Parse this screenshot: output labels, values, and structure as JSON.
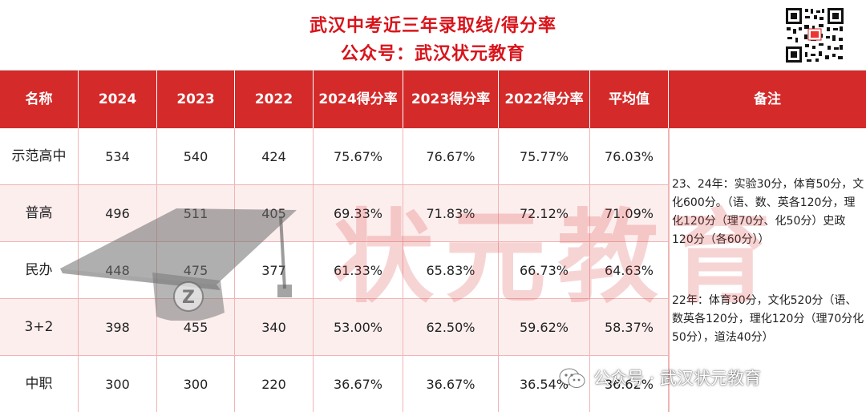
{
  "title": {
    "line1": "武汉中考近三年录取线/得分率",
    "line2": "公众号：武汉状元教育"
  },
  "table": {
    "headers": [
      "名称",
      "2024",
      "2023",
      "2022",
      "2024得分率",
      "2023得分率",
      "2022得分率",
      "平均值",
      "备注"
    ],
    "rows": [
      [
        "示范高中",
        "534",
        "540",
        "424",
        "75.67%",
        "76.67%",
        "75.77%",
        "76.03%"
      ],
      [
        "普高",
        "496",
        "511",
        "405",
        "69.33%",
        "71.83%",
        "72.12%",
        "71.09%"
      ],
      [
        "民办",
        "448",
        "475",
        "377",
        "61.33%",
        "65.83%",
        "66.73%",
        "64.63%"
      ],
      [
        "3+2",
        "398",
        "455",
        "340",
        "53.00%",
        "62.50%",
        "59.62%",
        "58.37%"
      ],
      [
        "中职",
        "300",
        "300",
        "220",
        "36.67%",
        "36.67%",
        "36.54%",
        "36.62%"
      ]
    ],
    "notes": {
      "note_2324": "23、24年：实验30分，体育50分，文化600分。（语、数、英各120分，理化120分（理70分、化50分）史政120分（各60分））",
      "note_22": "22年：体育30分，文化520分（语、数英各120分，理化120分（理70分化50分），道法40分）"
    }
  },
  "watermark": {
    "text": "状元教育",
    "cap_letter": "Z"
  },
  "footer": {
    "text": "公众号 · 武汉状元教育",
    "icon": "wechat-icon"
  },
  "colors": {
    "header_bg": "#d42a2a",
    "title_red": "#d8141b",
    "row_alt": "#fdeeee"
  }
}
